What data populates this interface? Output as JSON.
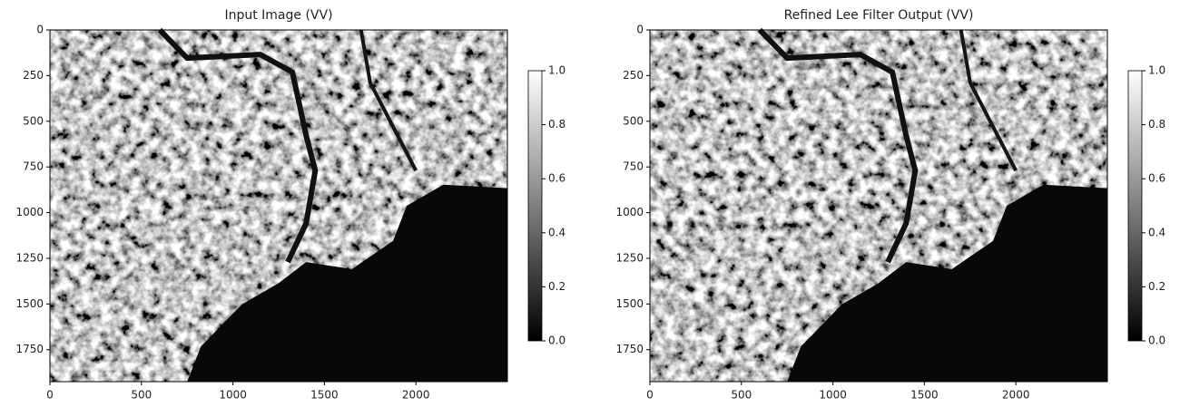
{
  "chart_data": [
    {
      "type": "image",
      "title": "Input Image (VV)",
      "colormap": "gray",
      "xlim": [
        0,
        2500
      ],
      "ylim": [
        1925,
        0
      ],
      "xticks": [
        0,
        500,
        1000,
        1500,
        2000
      ],
      "yticks": [
        0,
        250,
        500,
        750,
        1000,
        1250,
        1500,
        1750
      ],
      "colorbar": {
        "clim": [
          0,
          1
        ],
        "ticks": [
          {
            "value": 0,
            "label": "0.0"
          },
          0.2,
          0.4,
          0.6,
          0.8,
          {
            "value": 1,
            "label": "1.0"
          }
        ]
      }
    },
    {
      "type": "image",
      "title": "Refined Lee Filter Output (VV)",
      "colormap": "gray",
      "xlim": [
        0,
        2500
      ],
      "ylim": [
        1925,
        0
      ],
      "xticks": [
        0,
        500,
        1000,
        1500,
        2000
      ],
      "yticks": [
        0,
        250,
        500,
        750,
        1000,
        1250,
        1500,
        1750
      ],
      "colorbar": {
        "clim": [
          0,
          1
        ],
        "ticks": [
          {
            "value": 0,
            "label": "0.0"
          },
          0.2,
          0.4,
          0.6,
          0.8,
          {
            "value": 1,
            "label": "1.0"
          }
        ]
      }
    }
  ]
}
